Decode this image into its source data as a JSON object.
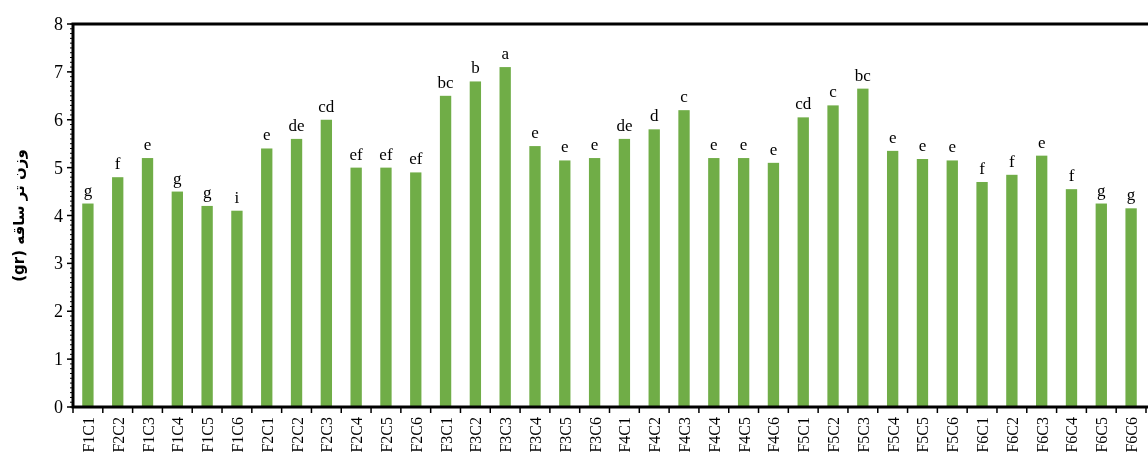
{
  "chart_data": {
    "type": "bar",
    "ylabel": "وزن تر ساقه (gr)",
    "categories": [
      "F1C1",
      "F2C2",
      "F1C3",
      "F1C4",
      "F1C5",
      "F1C6",
      "F2C1",
      "F2C2",
      "F2C3",
      "F2C4",
      "F2C5",
      "F2C6",
      "F3C1",
      "F3C2",
      "F3C3",
      "F3C4",
      "F3C5",
      "F3C6",
      "F4C1",
      "F4C2",
      "F4C3",
      "F4C4",
      "F4C5",
      "F4C6",
      "F5C1",
      "F5C2",
      "F5C3",
      "F5C4",
      "F5C5",
      "F5C6",
      "F6C1",
      "F6C2",
      "F6C3",
      "F6C4",
      "F6C5",
      "F6C6"
    ],
    "values": [
      4.25,
      4.8,
      5.2,
      4.5,
      4.2,
      4.1,
      5.4,
      5.6,
      6.0,
      5.0,
      5.0,
      4.9,
      6.5,
      6.8,
      7.1,
      5.45,
      5.15,
      5.2,
      5.6,
      5.8,
      6.2,
      5.2,
      5.2,
      5.1,
      6.05,
      6.3,
      6.65,
      5.35,
      5.18,
      5.15,
      4.7,
      4.85,
      5.25,
      4.55,
      4.25,
      4.15
    ],
    "value_labels": [
      "g",
      "f",
      "e",
      "g",
      "g",
      "i",
      "e",
      "de",
      "cd",
      "ef",
      "ef",
      "ef",
      "bc",
      "b",
      "a",
      "e",
      "e",
      "e",
      "de",
      "d",
      "c",
      "e",
      "e",
      "e",
      "cd",
      "c",
      "bc",
      "e",
      "e",
      "e",
      "f",
      "f",
      "e",
      "f",
      "g",
      "g"
    ],
    "color": "#70ad47",
    "ylim": [
      0,
      8
    ],
    "yticks": [
      0,
      1,
      2,
      3,
      4,
      5,
      6,
      7,
      8
    ],
    "grid": false
  }
}
